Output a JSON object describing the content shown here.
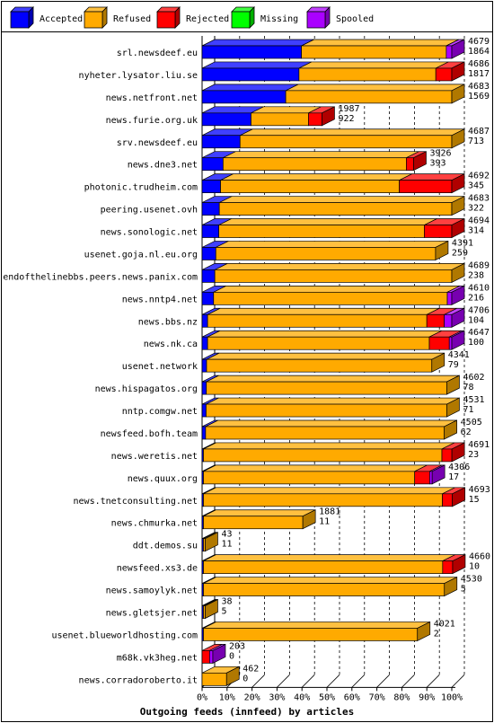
{
  "chart_data": {
    "type": "bar",
    "title": "Outgoing feeds (innfeed) by articles",
    "orientation": "horizontal-stacked-percent",
    "legend_position": "top",
    "grid": true,
    "xlim": [
      0,
      100
    ],
    "x_ticks": [
      "0%",
      "10%",
      "20%",
      "30%",
      "40%",
      "50%",
      "60%",
      "70%",
      "80%",
      "90%",
      "100%"
    ],
    "series": [
      {
        "name": "Accepted",
        "color": "#0000ff",
        "side": "#0000b0",
        "top": "#4040ff"
      },
      {
        "name": "Refused",
        "color": "#ffaa00",
        "side": "#b07800",
        "top": "#ffc040"
      },
      {
        "name": "Rejected",
        "color": "#ff0000",
        "side": "#b00000",
        "top": "#ff4040"
      },
      {
        "name": "Missing",
        "color": "#00ff00",
        "side": "#00b000",
        "top": "#40ff40"
      },
      {
        "name": "Spooled",
        "color": "#aa00ff",
        "side": "#7700b0",
        "top": "#c040ff"
      }
    ],
    "feeds": [
      {
        "name": "srl.newsdeef.eu",
        "total": "4679",
        "accepted": "1864",
        "pct": [
          39.8,
          58.0,
          0,
          0,
          2.2
        ]
      },
      {
        "name": "nyheter.lysator.liu.se",
        "total": "4686",
        "accepted": "1817",
        "pct": [
          38.8,
          54.8,
          6.4,
          0,
          0
        ]
      },
      {
        "name": "news.netfront.net",
        "total": "4683",
        "accepted": "1569",
        "pct": [
          33.5,
          66.5,
          0,
          0,
          0
        ]
      },
      {
        "name": "news.furie.org.uk",
        "total": "1987",
        "accepted": "922",
        "pct": [
          19.6,
          23.0,
          5.4,
          0,
          0
        ]
      },
      {
        "name": "srv.newsdeef.eu",
        "total": "4687",
        "accepted": "713",
        "pct": [
          15.2,
          84.8,
          0,
          0,
          0
        ]
      },
      {
        "name": "news.dne3.net",
        "total": "3926",
        "accepted": "393",
        "pct": [
          8.4,
          73.4,
          2.9,
          0,
          0
        ]
      },
      {
        "name": "photonic.trudheim.com",
        "total": "4692",
        "accepted": "345",
        "pct": [
          7.4,
          71.6,
          21.0,
          0,
          0
        ]
      },
      {
        "name": "peering.usenet.ovh",
        "total": "4683",
        "accepted": "322",
        "pct": [
          6.9,
          93.1,
          0,
          0,
          0
        ]
      },
      {
        "name": "news.sonologic.net",
        "total": "4694",
        "accepted": "314",
        "pct": [
          6.7,
          82.3,
          11.0,
          0,
          0
        ]
      },
      {
        "name": "usenet.goja.nl.eu.org",
        "total": "4391",
        "accepted": "259",
        "pct": [
          5.5,
          88.0,
          0,
          0,
          0
        ]
      },
      {
        "name": "endofthelinebbs.peers.news.panix.com",
        "total": "4689",
        "accepted": "238",
        "pct": [
          5.1,
          94.9,
          0,
          0,
          0
        ]
      },
      {
        "name": "news.nntp4.net",
        "total": "4610",
        "accepted": "216",
        "pct": [
          4.6,
          93.6,
          0,
          0,
          1.8
        ]
      },
      {
        "name": "news.bbs.nz",
        "total": "4706",
        "accepted": "104",
        "pct": [
          2.2,
          87.8,
          7.0,
          0,
          3.0
        ]
      },
      {
        "name": "news.nk.ca",
        "total": "4647",
        "accepted": "100",
        "pct": [
          2.2,
          88.8,
          8.0,
          0,
          1.0
        ]
      },
      {
        "name": "usenet.network",
        "total": "4341",
        "accepted": "79",
        "pct": [
          1.8,
          90.2,
          0,
          0,
          0
        ]
      },
      {
        "name": "news.hispagatos.org",
        "total": "4602",
        "accepted": "78",
        "pct": [
          1.7,
          96.3,
          0,
          0,
          0
        ]
      },
      {
        "name": "nntp.comgw.net",
        "total": "4531",
        "accepted": "71",
        "pct": [
          1.6,
          96.4,
          0,
          0,
          0
        ]
      },
      {
        "name": "newsfeed.bofh.team",
        "total": "4505",
        "accepted": "62",
        "pct": [
          1.4,
          95.6,
          0,
          0,
          0
        ]
      },
      {
        "name": "news.weretis.net",
        "total": "4691",
        "accepted": "23",
        "pct": [
          0.5,
          95.5,
          4.0,
          0,
          0
        ]
      },
      {
        "name": "news.quux.org",
        "total": "4306",
        "accepted": "17",
        "pct": [
          0.4,
          84.6,
          6.0,
          0,
          1.0
        ]
      },
      {
        "name": "news.tnetconsulting.net",
        "total": "4693",
        "accepted": "15",
        "pct": [
          0.3,
          95.7,
          4.0,
          0,
          0
        ]
      },
      {
        "name": "news.chmurka.net",
        "total": "1881",
        "accepted": "11",
        "pct": [
          0.2,
          39.8,
          0,
          0,
          0
        ]
      },
      {
        "name": "ddt.demos.su",
        "total": "43",
        "accepted": "11",
        "pct": [
          0.2,
          0.7,
          0,
          0,
          0
        ]
      },
      {
        "name": "newsfeed.xs3.de",
        "total": "4660",
        "accepted": "10",
        "pct": [
          0.2,
          95.8,
          4.0,
          0,
          0
        ]
      },
      {
        "name": "news.samoylyk.net",
        "total": "4530",
        "accepted": "5",
        "pct": [
          0.1,
          96.5,
          0,
          0,
          0
        ]
      },
      {
        "name": "news.gletsjer.net",
        "total": "38",
        "accepted": "5",
        "pct": [
          0.1,
          0.7,
          0,
          0,
          0
        ]
      },
      {
        "name": "usenet.blueworldhosting.com",
        "total": "4021",
        "accepted": "2",
        "pct": [
          0.05,
          85.7,
          0,
          0,
          0
        ]
      },
      {
        "name": "m68k.vk3heg.net",
        "total": "203",
        "accepted": "0",
        "pct": [
          0,
          0,
          3.0,
          0,
          1.3
        ]
      },
      {
        "name": "news.corradoroberto.it",
        "total": "462",
        "accepted": "0",
        "pct": [
          0,
          9.8,
          0,
          0,
          0
        ]
      }
    ]
  }
}
